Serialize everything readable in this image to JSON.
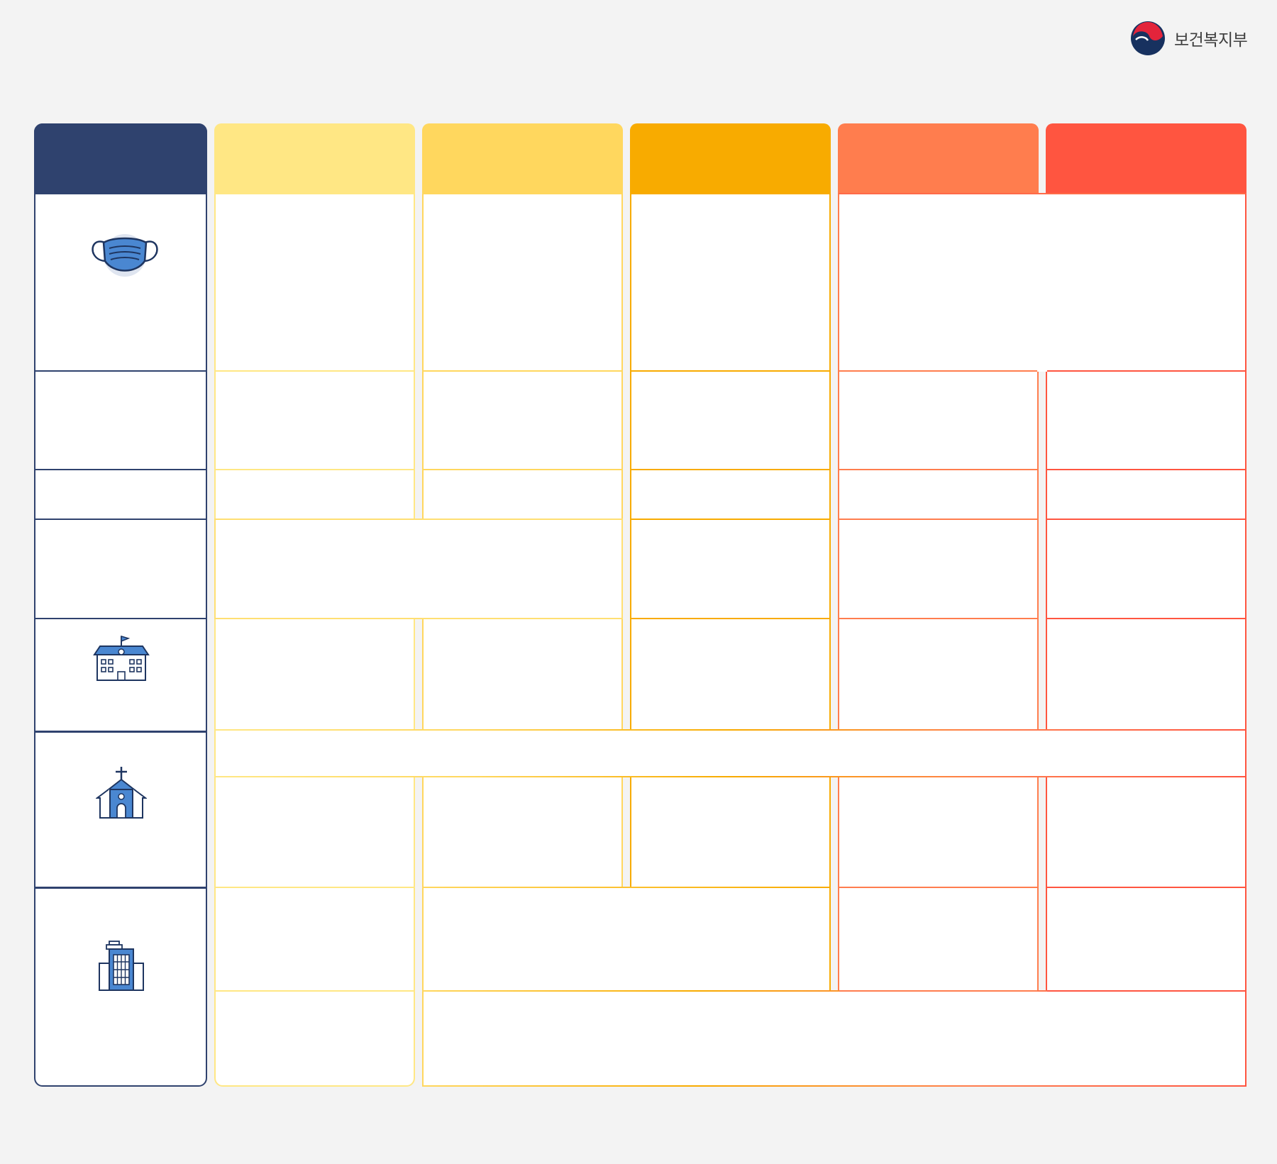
{
  "header": {
    "logo_text": "보건복지부"
  },
  "colors": {
    "background": "#f3f3f3",
    "category_header": "#2f426e",
    "category_border": "#2f426e",
    "level_1": "#ffe784",
    "level_2": "#ffd75e",
    "level_3": "#f8ab00",
    "level_4": "#ff7d4e",
    "level_5": "#ff5540",
    "icon_fill": "#4a87d1",
    "icon_stroke": "#1e3560"
  },
  "row_icons": [
    "mask-icon",
    "school-icon",
    "church-icon",
    "office-building-icon"
  ]
}
